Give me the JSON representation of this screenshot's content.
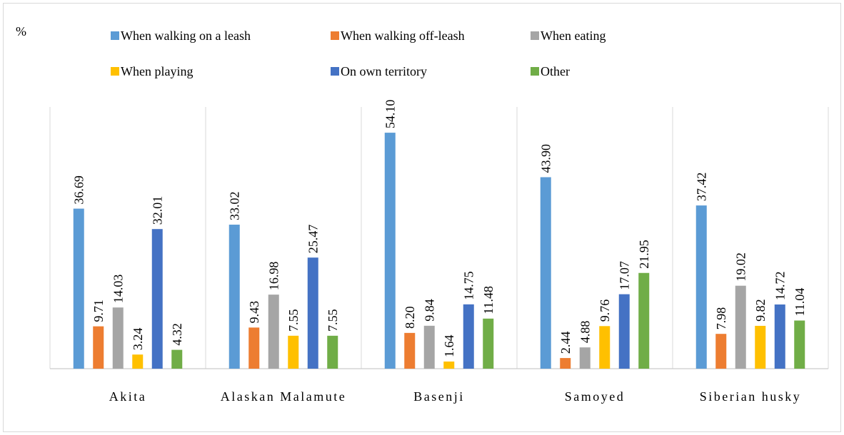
{
  "chart_data": {
    "type": "bar",
    "y_label": "%",
    "categories": [
      "Akita",
      "Alaskan Malamute",
      "Basenji",
      "Samoyed",
      "Siberian husky"
    ],
    "series": [
      {
        "name": "When walking on a leash",
        "color": "#5b9bd5",
        "values": [
          36.69,
          33.02,
          54.1,
          43.9,
          37.42
        ],
        "value_labels": [
          "36.69",
          "33.02",
          "54.10",
          "43.90",
          "37.42"
        ]
      },
      {
        "name": "When walking off-leash",
        "color": "#ed7d31",
        "values": [
          9.71,
          9.43,
          8.2,
          2.44,
          7.98
        ],
        "value_labels": [
          "9.71",
          "9.43",
          "8.20",
          "2.44",
          "7.98"
        ]
      },
      {
        "name": "When eating",
        "color": "#a5a5a5",
        "values": [
          14.03,
          16.98,
          9.84,
          4.88,
          19.02
        ],
        "value_labels": [
          "14.03",
          "16.98",
          "9.84",
          "4.88",
          "19.02"
        ]
      },
      {
        "name": "When playing",
        "color": "#ffc000",
        "values": [
          3.24,
          7.55,
          1.64,
          9.76,
          9.82
        ],
        "value_labels": [
          "3.24",
          "7.55",
          "1.64",
          "9.76",
          "9.82"
        ]
      },
      {
        "name": "On own territory",
        "color": "#4472c4",
        "values": [
          32.01,
          25.47,
          14.75,
          17.07,
          14.72
        ],
        "value_labels": [
          "32.01",
          "25.47",
          "14.75",
          "17.07",
          "14.72"
        ]
      },
      {
        "name": "Other",
        "color": "#70ad47",
        "values": [
          4.32,
          7.55,
          11.48,
          21.95,
          11.04
        ],
        "value_labels": [
          "4.32",
          "7.55",
          "11.48",
          "21.95",
          "11.04"
        ]
      }
    ],
    "ylim": [
      0,
      60
    ],
    "legend": "top"
  }
}
